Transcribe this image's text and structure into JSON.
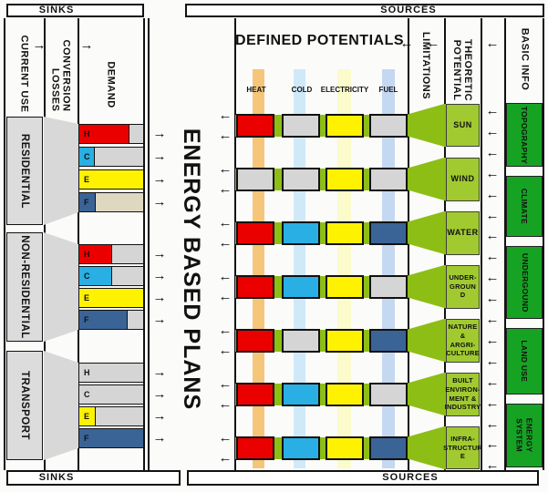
{
  "frame": {
    "top_sinks": "SINKS",
    "top_sources": "SOURCES",
    "bottom_sinks": "SINKS",
    "bottom_sources": "SOURCES"
  },
  "left_flow": {
    "current_use": "CURRENT USE",
    "conversion": "CONVERSION",
    "losses": "LOSSES",
    "demand": "DEMAND"
  },
  "center": {
    "title": "ENERGY BASED PLANS"
  },
  "potentials": {
    "title": "DEFINED POTENTIALS",
    "carriers": [
      "HEAT",
      "COLD",
      "ELECTRICITY",
      "FUEL"
    ]
  },
  "right_flow": {
    "limitations": "LIMITATIONS",
    "theoretic": "THEORETIC",
    "potential": "POTENTIAL",
    "basic_info": "BASIC INFO"
  },
  "icons": {
    "arrow_right": "→",
    "arrow_left": "←"
  },
  "colors": {
    "red": "#eb0000",
    "cyan": "#29afe3",
    "yellow": "#fef200",
    "blue": "#3b6496",
    "gray": "#d5d5d5",
    "tan": "#dfd8c0",
    "band_green": "#8dbe15",
    "box_green": "#a1ca30",
    "dark_green": "#16a324",
    "heat_band": "#f4bf6c",
    "cold_band": "#cbe7f7",
    "electricity_band": "#fbfbc6",
    "fuel_band": "#bfd4f0"
  },
  "sinks": {
    "sections": [
      {
        "name": "RESIDENTIAL",
        "bars": [
          {
            "label": "H",
            "fill": "red",
            "frac": 0.78,
            "rest": "gray"
          },
          {
            "label": "C",
            "fill": "cyan",
            "frac": 0.24,
            "rest": "gray"
          },
          {
            "label": "E",
            "fill": "yellow",
            "frac": 1.0,
            "rest": "gray"
          },
          {
            "label": "F",
            "fill": "blue",
            "frac": 0.25,
            "rest": "tan"
          }
        ]
      },
      {
        "name": "NON-RESIDENTIAL",
        "bars": [
          {
            "label": "H",
            "fill": "red",
            "frac": 0.51,
            "rest": "gray"
          },
          {
            "label": "C",
            "fill": "cyan",
            "frac": 0.51,
            "rest": "gray"
          },
          {
            "label": "E",
            "fill": "yellow",
            "frac": 1.0,
            "rest": "gray"
          },
          {
            "label": "F",
            "fill": "blue",
            "frac": 0.76,
            "rest": "gray"
          }
        ]
      },
      {
        "name": "TRANSPORT",
        "bars": [
          {
            "label": "H",
            "fill": "gray",
            "frac": 0.0,
            "rest": "gray"
          },
          {
            "label": "C",
            "fill": "gray",
            "frac": 0.0,
            "rest": "gray"
          },
          {
            "label": "E",
            "fill": "yellow",
            "frac": 0.25,
            "rest": "gray"
          },
          {
            "label": "F",
            "fill": "blue",
            "frac": 1.0,
            "rest": "blue"
          }
        ]
      }
    ]
  },
  "sources": {
    "rows": [
      {
        "name": [
          "SUN"
        ],
        "big": true,
        "cells": [
          "red",
          "gray",
          "yellow",
          "gray"
        ]
      },
      {
        "name": [
          "WIND"
        ],
        "big": true,
        "cells": [
          "gray",
          "gray",
          "yellow",
          "gray"
        ]
      },
      {
        "name": [
          "WATER"
        ],
        "big": true,
        "cells": [
          "red",
          "cyan",
          "yellow",
          "blue"
        ]
      },
      {
        "name": [
          "UNDER-",
          "GROUN",
          "D"
        ],
        "big": false,
        "cells": [
          "red",
          "cyan",
          "yellow",
          "gray"
        ]
      },
      {
        "name": [
          "NATURE",
          "& ARGRI-",
          "CULTURE"
        ],
        "big": false,
        "cells": [
          "red",
          "gray",
          "yellow",
          "blue"
        ]
      },
      {
        "name": [
          "BUILT",
          "ENVIRON-",
          "MENT &",
          "INDUSTRY"
        ],
        "big": false,
        "cells": [
          "red",
          "cyan",
          "yellow",
          "gray"
        ]
      },
      {
        "name": [
          "INFRA-",
          "STRUCTUR",
          "E"
        ],
        "big": false,
        "cells": [
          "red",
          "cyan",
          "yellow",
          "blue"
        ]
      }
    ]
  },
  "basic_info": {
    "boxes": [
      {
        "lines": [
          "TOPOGRAPHY"
        ]
      },
      {
        "lines": [
          "CLIMATE"
        ]
      },
      {
        "lines": [
          "UNDERGOUND"
        ]
      },
      {
        "lines": [
          "LAND USE"
        ]
      },
      {
        "lines": [
          "ENERGY",
          "SYSTEM"
        ]
      }
    ]
  }
}
